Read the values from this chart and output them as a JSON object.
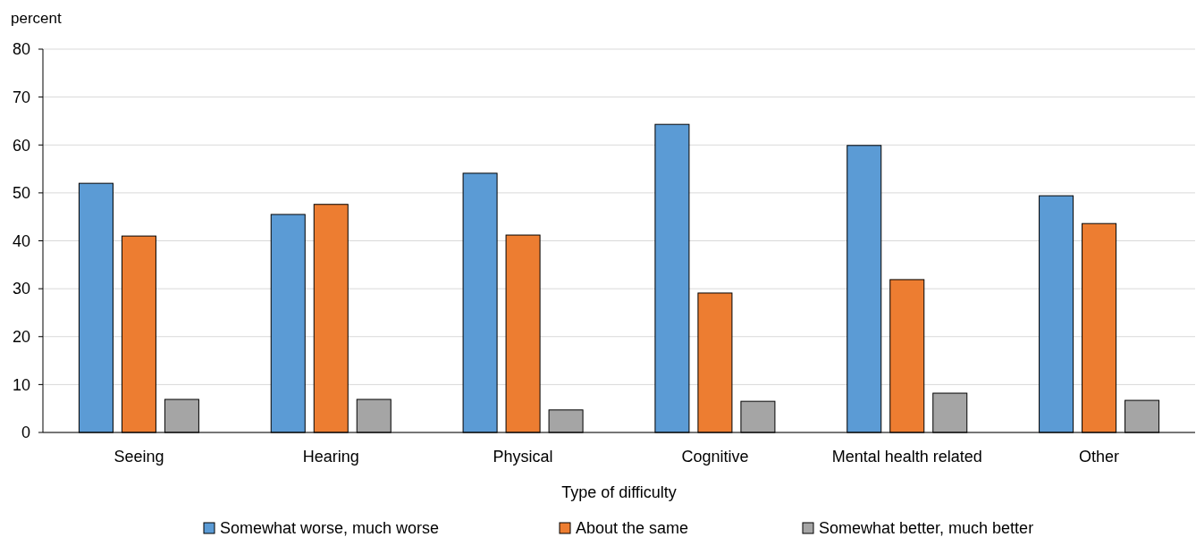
{
  "chart_data": {
    "type": "bar",
    "ylabel": "percent",
    "xlabel": "Type of difficulty",
    "categories": [
      "Seeing",
      "Hearing",
      "Physical",
      "Cognitive",
      "Mental health related",
      "Other"
    ],
    "series": [
      {
        "name": "Somewhat worse, much worse",
        "color": "#5b9bd5",
        "values": [
          52.0,
          45.5,
          54.1,
          64.3,
          59.9,
          49.4
        ]
      },
      {
        "name": "About the same",
        "color": "#ed7d31",
        "values": [
          41.0,
          47.6,
          41.2,
          29.1,
          31.9,
          43.6
        ]
      },
      {
        "name": "Somewhat better, much better",
        "color": "#a5a5a5",
        "values": [
          6.9,
          6.9,
          4.7,
          6.5,
          8.2,
          6.7
        ]
      }
    ],
    "ylim": [
      0,
      80
    ],
    "yticks": [
      0,
      10,
      20,
      30,
      40,
      50,
      60,
      70,
      80
    ],
    "grid": "y",
    "legend": "bottom"
  }
}
